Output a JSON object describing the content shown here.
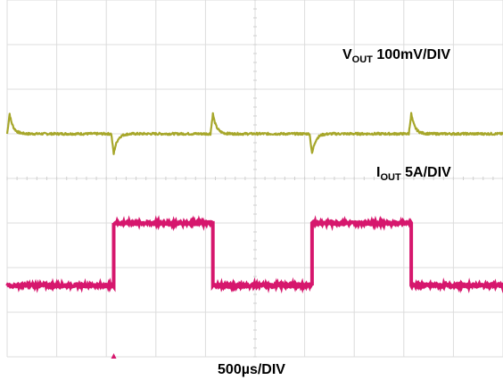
{
  "chart_data": {
    "type": "line",
    "title": "",
    "xlabel": "500µs/DIV",
    "grid": true,
    "grid_divisions": {
      "x": 10,
      "y": 8
    },
    "time_per_div_us": 500,
    "colors": {
      "vout": "#a7a72b",
      "iout": "#d6176d",
      "grid": "#dcdcdc",
      "trigger_marker": "#d6176d"
    },
    "series": [
      {
        "key": "vout",
        "label_main": "V",
        "label_sub": "OUT",
        "label_scale": " 100mV/DIV",
        "unit": "V",
        "scale_per_div_mv": 100,
        "baseline_div": 5.0,
        "spikes": [
          {
            "t_div": 0.05,
            "dir": 1
          },
          {
            "t_div": 2.15,
            "dir": -1
          },
          {
            "t_div": 4.15,
            "dir": 1
          },
          {
            "t_div": 6.15,
            "dir": -1
          },
          {
            "t_div": 8.15,
            "dir": 1
          }
        ],
        "spike_amplitude_div": 0.45
      },
      {
        "key": "iout",
        "label_main": "I",
        "label_sub": "OUT",
        "label_scale": " 5A/DIV",
        "unit": "A",
        "scale_per_div_a": 5,
        "low_div": 1.6,
        "high_div": 3.0,
        "edges_div": [
          2.15,
          4.15,
          6.15,
          8.15
        ]
      }
    ]
  }
}
